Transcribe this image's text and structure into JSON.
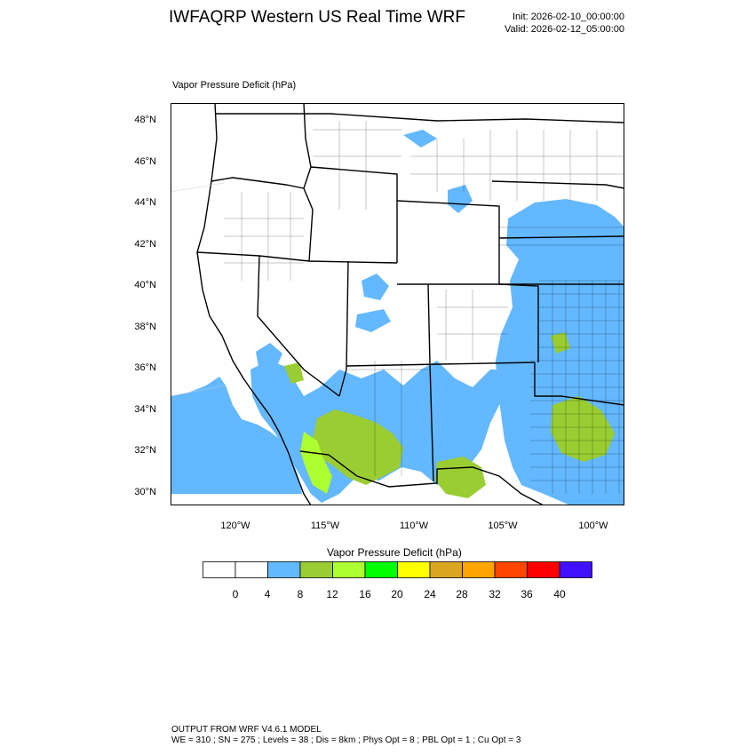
{
  "header": {
    "title": "IWFAQRP Western US Real Time WRF",
    "init": "Init: 2026-02-10_00:00:00",
    "valid": "Valid: 2026-02-12_05:00:00"
  },
  "map": {
    "field_label": "Vapor Pressure Deficit   (hPa)",
    "lat_labels": [
      "48°N",
      "46°N",
      "44°N",
      "42°N",
      "40°N",
      "38°N",
      "36°N",
      "34°N",
      "32°N",
      "30°N"
    ],
    "lon_labels": [
      "120°W",
      "115°W",
      "110°W",
      "105°W",
      "100°W"
    ]
  },
  "colorbar": {
    "title": "Vapor Pressure Deficit  (hPa)",
    "labels": [
      "0",
      "4",
      "8",
      "12",
      "16",
      "20",
      "24",
      "28",
      "32",
      "36",
      "40"
    ],
    "colors": [
      "#ffffff",
      "#ffffff",
      "#63b8ff",
      "#9acd32",
      "#adff2f",
      "#00ff00",
      "#ffff00",
      "#daa520",
      "#ffa500",
      "#ff4500",
      "#ff0000",
      "#4010ff"
    ]
  },
  "footer": {
    "line1": "OUTPUT FROM WRF V4.6.1 MODEL",
    "line2": "WE = 310 ; SN = 275 ; Levels = 38 ; Dis = 8km ; Phys Opt = 8 ; PBL Opt = 1 ; Cu Opt = 3"
  }
}
